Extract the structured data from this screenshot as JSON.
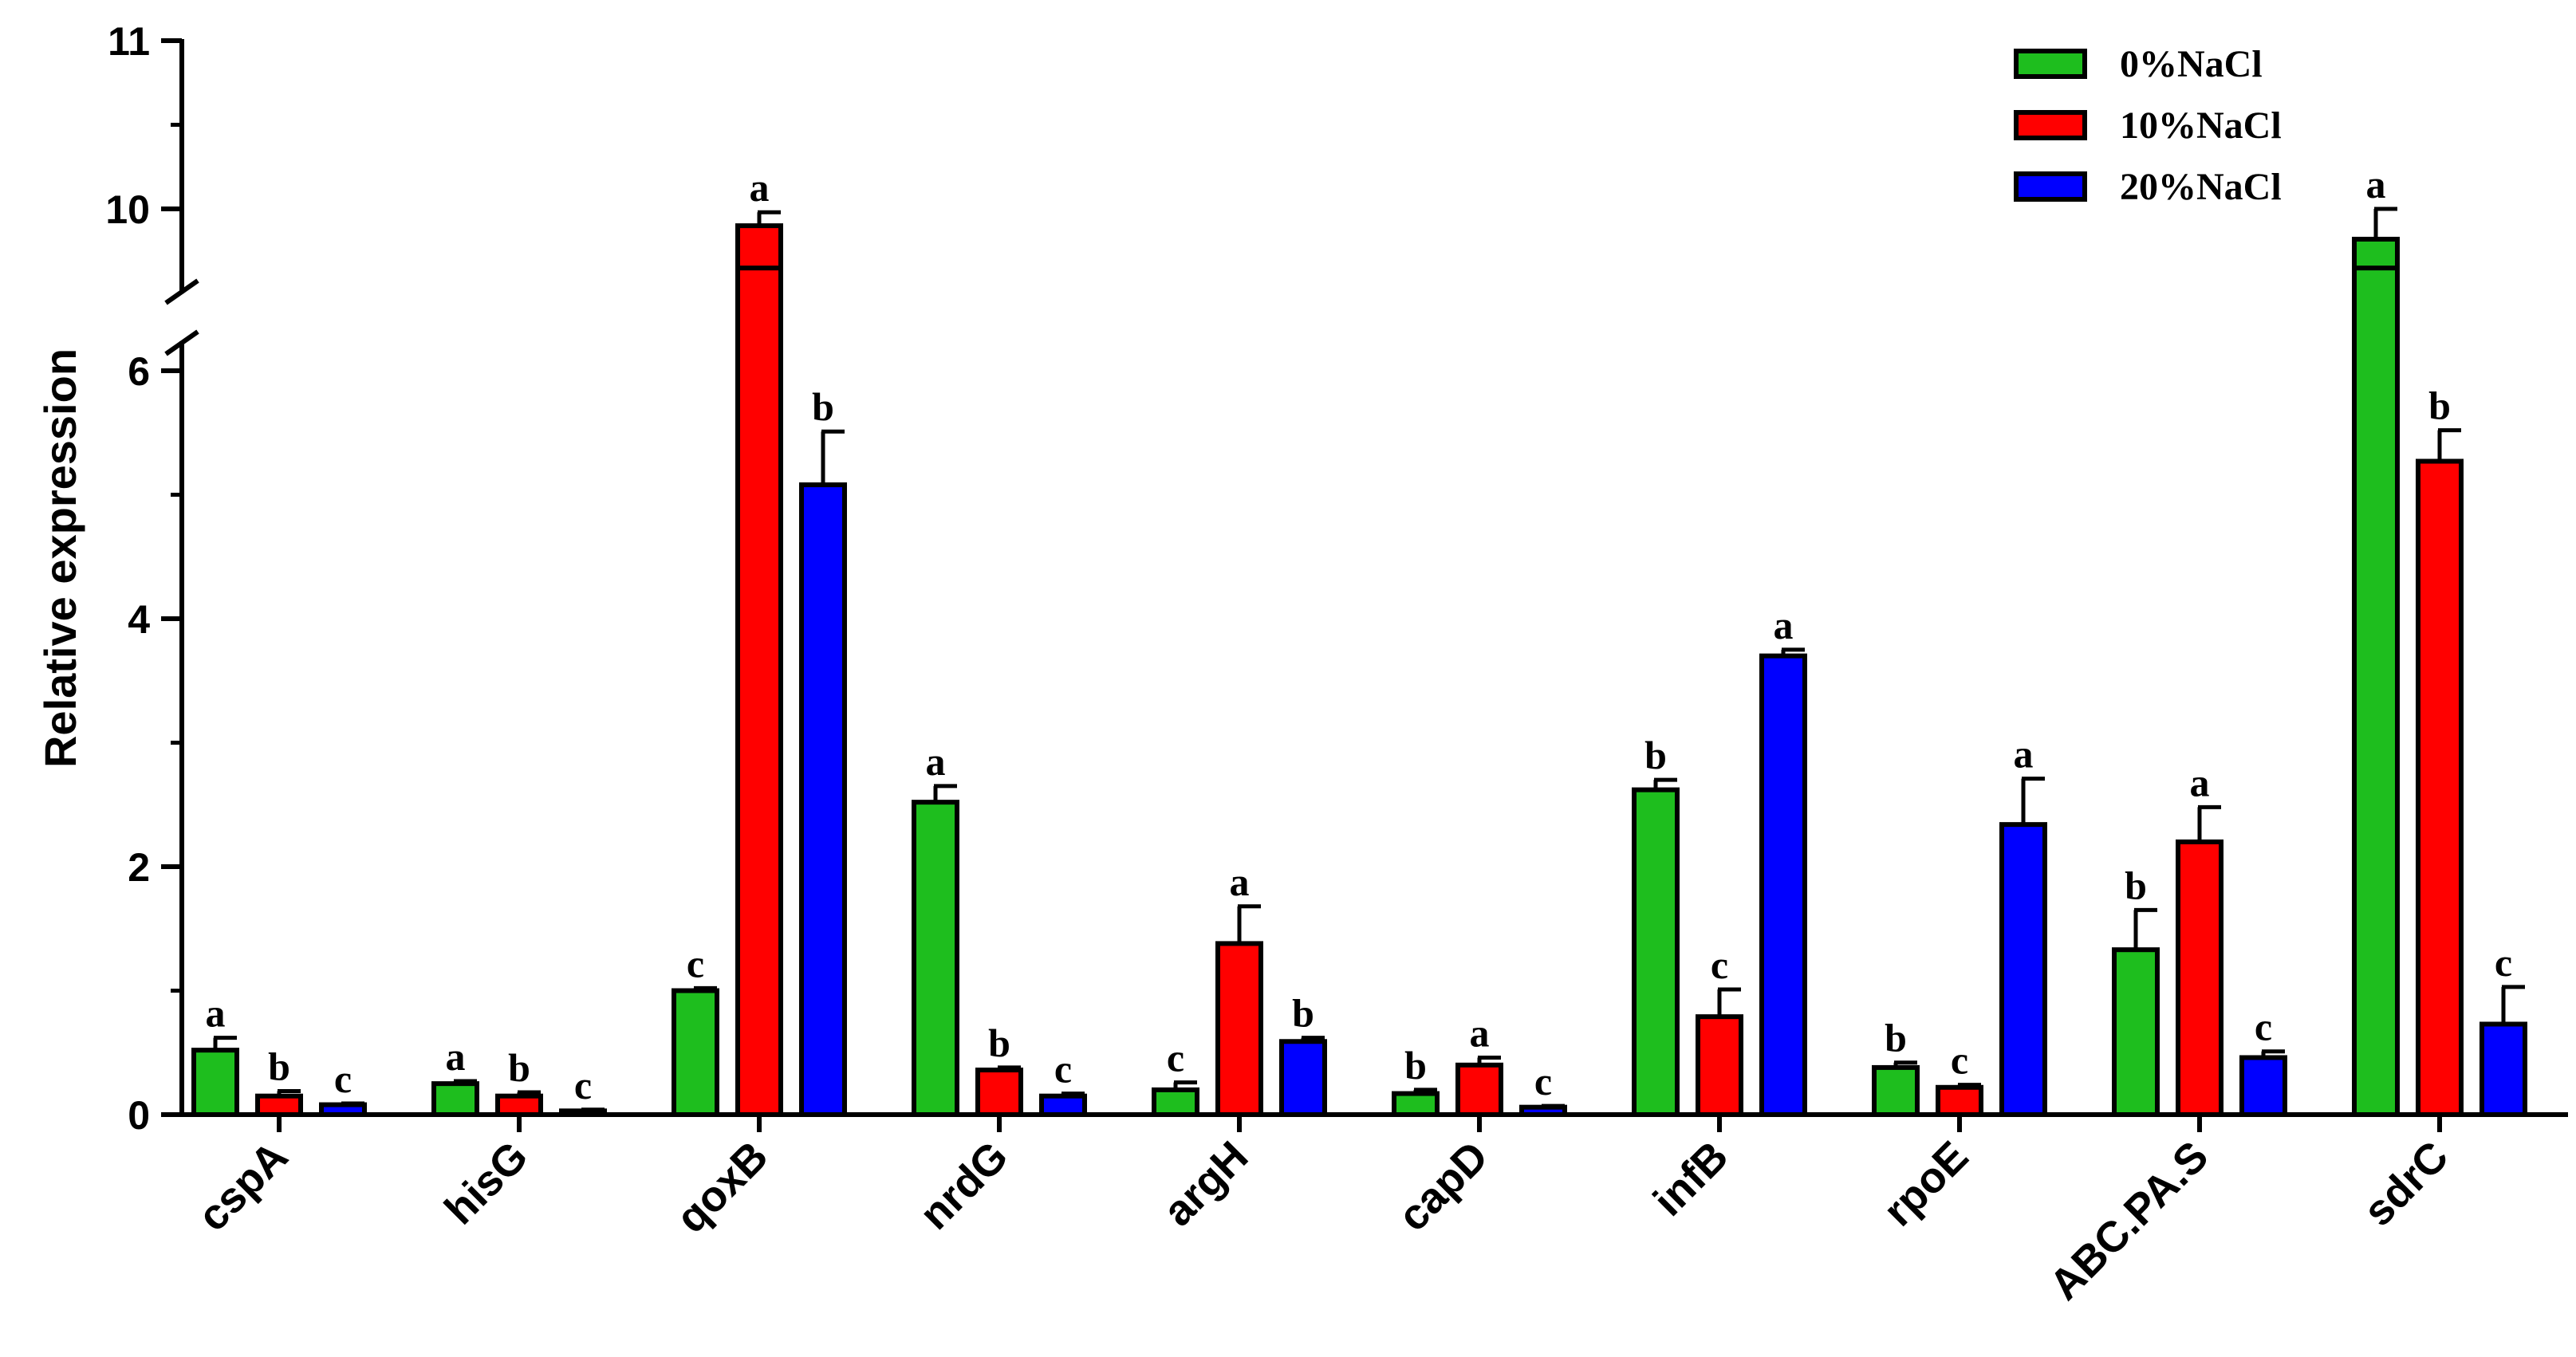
{
  "chart_data": {
    "type": "bar",
    "ylabel": "Relative expression",
    "xlabel": "",
    "categories": [
      "cspA",
      "hisG",
      "qoxB",
      "nrdG",
      "argH",
      "capD",
      "infB",
      "rpoE",
      "ABC.PA.S",
      "sdrC"
    ],
    "y_axis": {
      "broken": true,
      "lower_segment": [
        0,
        6.7
      ],
      "upper_segment": [
        9.5,
        11
      ],
      "lower_ticks": [
        "0",
        "2",
        "4",
        "6"
      ],
      "upper_ticks": [
        "10",
        "11"
      ]
    },
    "legend_position": "top-right",
    "series": [
      {
        "name": "0%NaCl",
        "color": "#1ebe1e",
        "values": [
          0.52,
          0.25,
          1.0,
          2.52,
          0.2,
          0.17,
          2.62,
          0.38,
          1.33,
          9.82
        ],
        "errors": [
          0.1,
          0.02,
          0.02,
          0.13,
          0.06,
          0.03,
          0.08,
          0.04,
          0.32,
          0.18
        ],
        "letters": [
          "a",
          "a",
          "c",
          "a",
          "c",
          "b",
          "b",
          "b",
          "b",
          "a"
        ]
      },
      {
        "name": "10%NaCl",
        "color": "#ff0000",
        "values": [
          0.15,
          0.15,
          9.9,
          0.36,
          1.38,
          0.4,
          0.79,
          0.22,
          2.2,
          5.27
        ],
        "errors": [
          0.04,
          0.03,
          0.08,
          0.02,
          0.3,
          0.06,
          0.22,
          0.02,
          0.28,
          0.25
        ],
        "letters": [
          "b",
          "b",
          "a",
          "b",
          "a",
          "a",
          "c",
          "c",
          "a",
          "b"
        ]
      },
      {
        "name": "20%NaCl",
        "color": "#0000ff",
        "values": [
          0.08,
          0.03,
          5.08,
          0.15,
          0.59,
          0.06,
          3.7,
          2.34,
          0.46,
          0.73
        ],
        "errors": [
          0.01,
          0.01,
          0.43,
          0.02,
          0.03,
          0.01,
          0.05,
          0.37,
          0.05,
          0.3
        ],
        "letters": [
          "c",
          "c",
          "b",
          "c",
          "b",
          "c",
          "a",
          "a",
          "c",
          "c"
        ]
      }
    ]
  }
}
